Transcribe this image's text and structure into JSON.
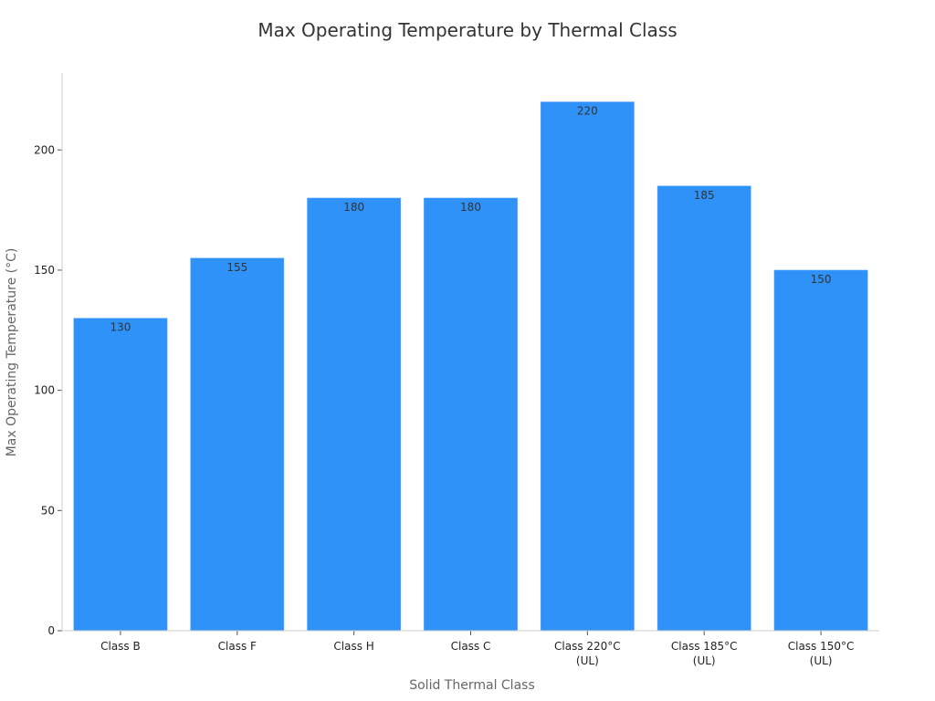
{
  "chart_data": {
    "type": "bar",
    "title": "Max Operating Temperature by Thermal Class",
    "xlabel": "Solid Thermal Class",
    "ylabel": "Max Operating Temperature (°C)",
    "categories": [
      [
        "Class B"
      ],
      [
        "Class F"
      ],
      [
        "Class H"
      ],
      [
        "Class C"
      ],
      [
        "Class 220°C",
        "(UL)"
      ],
      [
        "Class 185°C",
        "(UL)"
      ],
      [
        "Class 150°C",
        "(UL)"
      ]
    ],
    "values": [
      130,
      155,
      180,
      180,
      220,
      185,
      150
    ],
    "ylim": [
      0,
      232
    ],
    "yticks": [
      0,
      50,
      100,
      150,
      200
    ],
    "bar_color": "#2f92f8",
    "grid": false,
    "legend": "none"
  }
}
